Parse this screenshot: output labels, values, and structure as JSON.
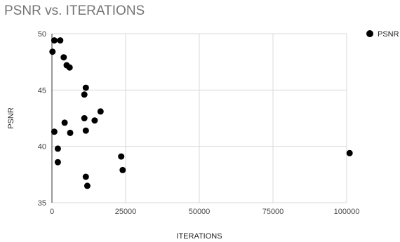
{
  "chart_data": {
    "type": "scatter",
    "title": "PSNR vs. ITERATIONS",
    "xlabel": "ITERATIONS",
    "ylabel": "PSNR",
    "xlim": [
      0,
      100000
    ],
    "ylim": [
      35,
      50
    ],
    "xticks": [
      0,
      25000,
      50000,
      75000,
      100000
    ],
    "yticks": [
      35,
      40,
      45,
      50
    ],
    "grid": true,
    "legend": "right",
    "series": [
      {
        "name": "PSNR",
        "color": "#000000",
        "points": [
          [
            800,
            49.4
          ],
          [
            2800,
            49.4
          ],
          [
            200,
            48.4
          ],
          [
            4000,
            47.9
          ],
          [
            5000,
            47.2
          ],
          [
            6000,
            47.0
          ],
          [
            11500,
            45.2
          ],
          [
            11000,
            44.6
          ],
          [
            16500,
            43.1
          ],
          [
            11000,
            42.5
          ],
          [
            14500,
            42.3
          ],
          [
            4300,
            42.1
          ],
          [
            11500,
            41.4
          ],
          [
            800,
            41.3
          ],
          [
            6200,
            41.2
          ],
          [
            2000,
            39.8
          ],
          [
            23500,
            39.1
          ],
          [
            101000,
            39.4
          ],
          [
            2000,
            38.6
          ],
          [
            24000,
            37.9
          ],
          [
            11500,
            37.3
          ],
          [
            12000,
            36.5
          ]
        ]
      }
    ]
  }
}
